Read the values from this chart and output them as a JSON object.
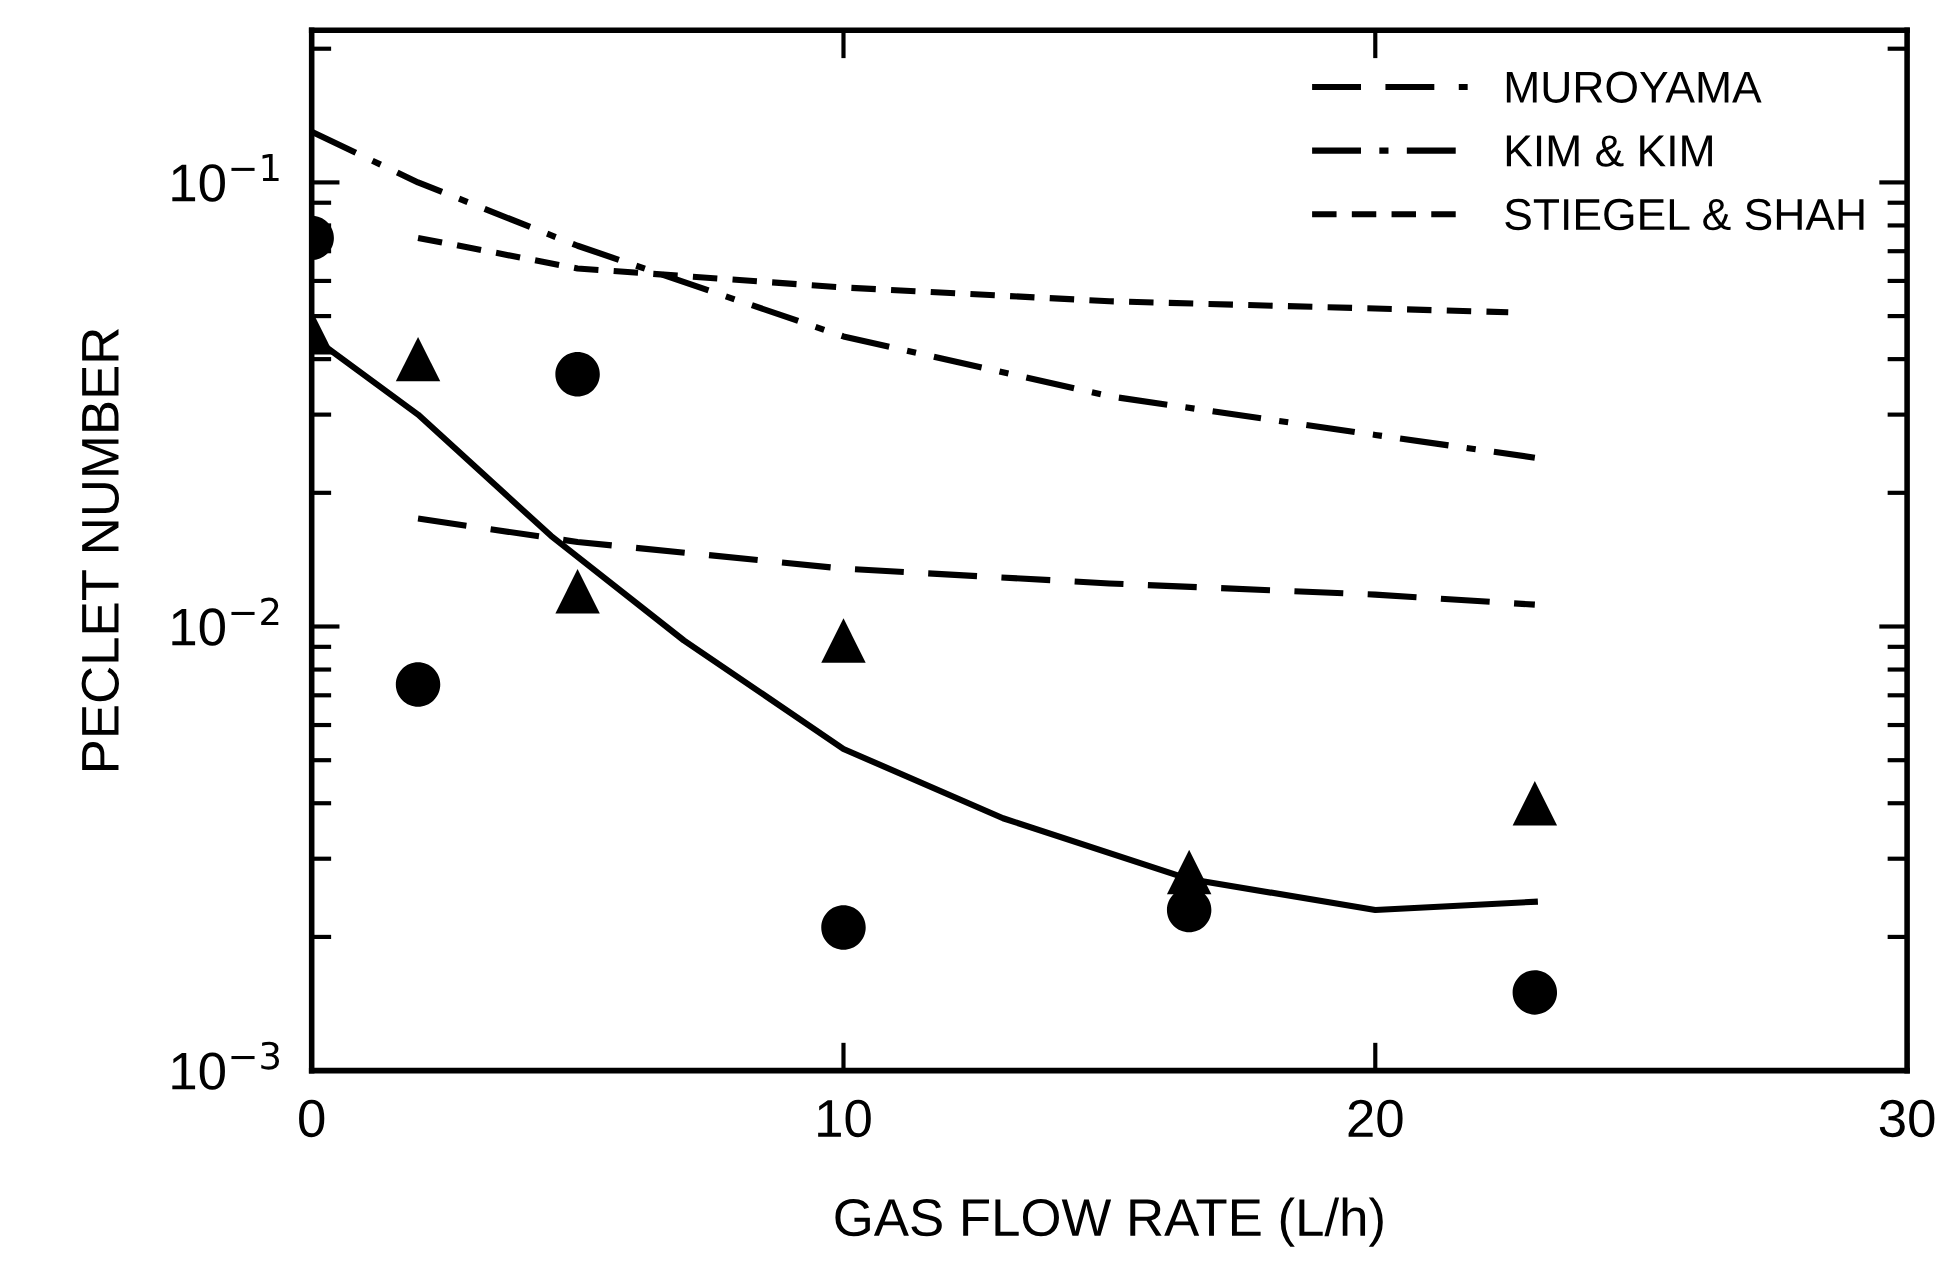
{
  "chart_data": {
    "type": "line",
    "xlabel": "GAS FLOW RATE (L/h)",
    "ylabel": "PECLET NUMBER",
    "log": "y",
    "xlim": [
      0,
      30
    ],
    "xticks": [
      0,
      10,
      20,
      30
    ],
    "ylim": [
      0.001,
      0.22
    ],
    "yticks": [
      {
        "value": 0.001,
        "label": "10$^{−3}$"
      },
      {
        "value": 0.01,
        "label": "10$^{−2}$"
      },
      {
        "value": 0.1,
        "label": "10$^{−1}$"
      }
    ],
    "grid": false,
    "legend": "top right",
    "series": [
      {
        "type": "scatter",
        "marker": "circle",
        "color": "#000000",
        "x": [
          0,
          2,
          5,
          10,
          16.5,
          23
        ],
        "values": [
          0.075,
          0.0074,
          0.037,
          0.0021,
          0.0023,
          0.0015
        ]
      },
      {
        "type": "scatter",
        "marker": "triangle",
        "color": "#000000",
        "x": [
          0,
          2,
          5,
          10,
          16.5,
          23
        ],
        "values": [
          0.046,
          0.04,
          0.012,
          0.0093,
          0.0028,
          0.004
        ]
      },
      {
        "line_style": "solid",
        "color": "#000000",
        "x": [
          0,
          2,
          4.5,
          7,
          10,
          13,
          16.5,
          20,
          23
        ],
        "values": [
          0.045,
          0.03,
          0.016,
          0.0093,
          0.0053,
          0.0037,
          0.0027,
          0.0023,
          0.0024
        ]
      },
      {
        "name": "MUROYAMA",
        "line_style": "longdash",
        "color": "#000000",
        "x": [
          2,
          5,
          10,
          15,
          20,
          23
        ],
        "values": [
          0.0175,
          0.0155,
          0.0135,
          0.0125,
          0.0118,
          0.0112
        ]
      },
      {
        "name": "KIM & KIM",
        "line_style": "dashdot",
        "color": "#000000",
        "x": [
          0,
          2,
          5,
          10,
          15,
          20,
          23
        ],
        "values": [
          0.13,
          0.1,
          0.072,
          0.045,
          0.033,
          0.027,
          0.024
        ]
      },
      {
        "name": "STIEGEL & SHAH",
        "line_style": "dashed",
        "color": "#000000",
        "x": [
          2,
          5,
          10,
          15,
          20,
          22.5
        ],
        "values": [
          0.075,
          0.064,
          0.058,
          0.054,
          0.052,
          0.051
        ]
      }
    ]
  }
}
